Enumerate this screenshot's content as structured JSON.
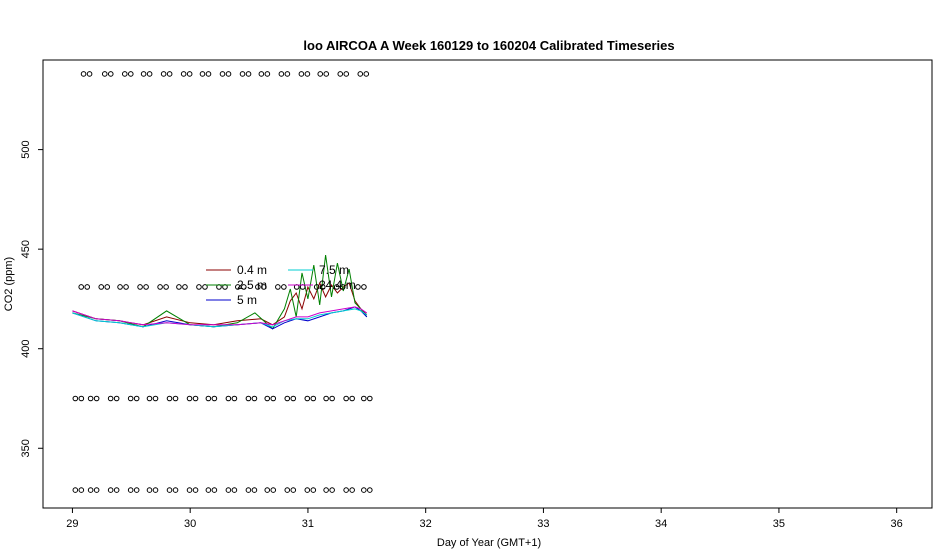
{
  "chart_data": {
    "type": "line",
    "title": "loo AIRCOA A  Week 160129 to 160204  Calibrated Timeseries",
    "xlabel": "Day of Year (GMT+1)",
    "ylabel": "CO2 (ppm)",
    "xlim": [
      28.75,
      36.3
    ],
    "ylim": [
      320,
      545
    ],
    "x_ticks": [
      "29",
      "30",
      "31",
      "32",
      "33",
      "34",
      "35",
      "36"
    ],
    "y_ticks": [
      "350",
      "400",
      "450",
      "500"
    ],
    "grid": false,
    "legend_position": "center-left inside plot",
    "series": [
      {
        "name": "0.4 m",
        "color": "#8b0000",
        "x": [
          29.0,
          29.2,
          29.4,
          29.6,
          29.8,
          30.0,
          30.2,
          30.4,
          30.6,
          30.7,
          30.8,
          30.85,
          30.9,
          30.95,
          31.0,
          31.05,
          31.1,
          31.15,
          31.2,
          31.25,
          31.3,
          31.35,
          31.4,
          31.45,
          31.5
        ],
        "values": [
          419,
          415,
          414,
          412,
          416,
          413,
          412,
          414,
          415,
          412,
          416,
          424,
          428,
          420,
          431,
          425,
          433,
          426,
          432,
          428,
          431,
          433,
          424,
          420,
          417
        ]
      },
      {
        "name": "2.5 m",
        "color": "#008000",
        "x": [
          29.0,
          29.2,
          29.4,
          29.6,
          29.8,
          30.0,
          30.2,
          30.4,
          30.55,
          30.7,
          30.8,
          30.85,
          30.9,
          30.95,
          31.0,
          31.05,
          31.1,
          31.15,
          31.2,
          31.25,
          31.3,
          31.35,
          31.4,
          31.45,
          31.5
        ],
        "values": [
          418,
          415,
          414,
          411,
          419,
          412,
          411,
          413,
          418,
          410,
          420,
          430,
          416,
          438,
          425,
          442,
          422,
          447,
          426,
          443,
          429,
          440,
          423,
          420,
          416
        ]
      },
      {
        "name": "5 m",
        "color": "#0000cd",
        "x": [
          29.0,
          29.2,
          29.4,
          29.6,
          29.8,
          30.0,
          30.2,
          30.4,
          30.6,
          30.7,
          30.8,
          30.9,
          31.0,
          31.1,
          31.2,
          31.3,
          31.4,
          31.45,
          31.5
        ],
        "values": [
          418,
          414,
          413,
          411,
          414,
          412,
          411,
          412,
          413,
          410,
          413,
          415,
          414,
          416,
          418,
          419,
          421,
          419,
          416
        ]
      },
      {
        "name": "7.5 m",
        "color": "#00ced1",
        "x": [
          29.0,
          29.2,
          29.4,
          29.6,
          29.8,
          30.0,
          30.2,
          30.4,
          30.6,
          30.7,
          30.8,
          30.9,
          31.0,
          31.1,
          31.2,
          31.3,
          31.4,
          31.45,
          31.5
        ],
        "values": [
          418,
          414,
          413,
          411,
          413,
          412,
          411,
          412,
          413,
          411,
          414,
          415,
          415,
          417,
          418,
          419,
          420,
          419,
          417
        ]
      },
      {
        "name": "24.4 m",
        "color": "#cc00cc",
        "x": [
          29.0,
          29.2,
          29.4,
          29.6,
          29.8,
          30.0,
          30.2,
          30.4,
          30.6,
          30.7,
          30.8,
          30.9,
          31.0,
          31.1,
          31.2,
          31.3,
          31.4,
          31.45,
          31.5
        ],
        "values": [
          419,
          415,
          414,
          412,
          413,
          412,
          412,
          412,
          413,
          412,
          414,
          416,
          416,
          418,
          419,
          420,
          421,
          420,
          418
        ]
      }
    ],
    "marker_rows": [
      {
        "y": 538,
        "x": [
          29.12,
          29.3,
          29.47,
          29.63,
          29.8,
          29.97,
          30.13,
          30.3,
          30.47,
          30.63,
          30.8,
          30.97,
          31.13,
          31.3,
          31.47
        ]
      },
      {
        "y": 431,
        "x": [
          29.1,
          29.27,
          29.43,
          29.6,
          29.77,
          29.93,
          30.1,
          30.27,
          30.43,
          30.6,
          30.77,
          30.93,
          31.1,
          31.27,
          31.45
        ]
      },
      {
        "y": 375,
        "x": [
          29.05,
          29.18,
          29.35,
          29.52,
          29.68,
          29.85,
          30.02,
          30.18,
          30.35,
          30.52,
          30.68,
          30.85,
          31.02,
          31.18,
          31.35,
          31.5
        ]
      },
      {
        "y": 329,
        "x": [
          29.05,
          29.18,
          29.35,
          29.52,
          29.68,
          29.85,
          30.02,
          30.18,
          30.35,
          30.52,
          30.68,
          30.85,
          31.02,
          31.18,
          31.35,
          31.5
        ]
      }
    ]
  }
}
